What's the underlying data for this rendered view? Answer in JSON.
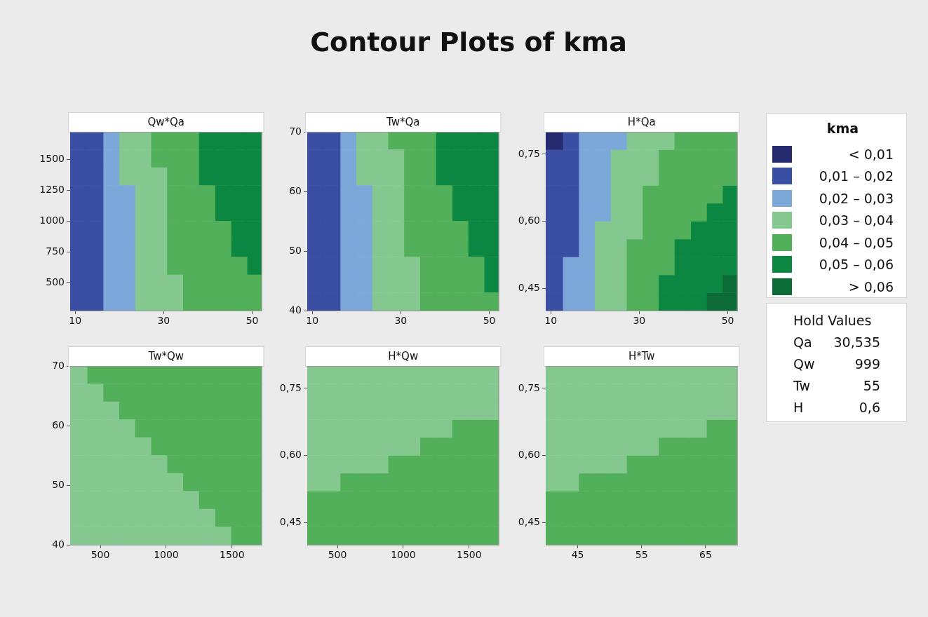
{
  "chart_data": [
    {
      "type": "other",
      "title": "Contour Plots of kma"
    },
    {
      "type": "scatter",
      "title": "Qw*Qa",
      "marker": "square",
      "xlim": [
        8.87,
        52.2
      ],
      "xticks": [
        10,
        30,
        50
      ],
      "ylim": [
        271,
        1727
      ],
      "yticks": [
        500,
        750,
        1000,
        1250,
        1500
      ],
      "series": [
        {
          "color": "#3a4fa3",
          "x": [
            10.7,
            14.3,
            10.7,
            14.3,
            10.7,
            14.3,
            10.7,
            14.3,
            10.7,
            14.3,
            10.7,
            14.3,
            10.7,
            14.3,
            10.7,
            14.3,
            10.7,
            14.3,
            10.7,
            14.3
          ],
          "values": [
            1654,
            1654,
            1508,
            1508,
            1363,
            1363,
            1217,
            1217,
            1072,
            1072,
            926,
            926,
            780,
            780,
            635,
            635,
            489,
            489,
            344,
            344
          ]
        },
        {
          "color": "#7ba7d9",
          "x": [
            17.9,
            17.9,
            17.9,
            17.9,
            21.5,
            17.9,
            21.5,
            17.9,
            21.5,
            17.9,
            21.5,
            17.9,
            21.5,
            17.9,
            21.5,
            17.9,
            21.5
          ],
          "values": [
            1654,
            1508,
            1363,
            1217,
            1217,
            1072,
            1072,
            926,
            926,
            780,
            780,
            635,
            635,
            489,
            489,
            344,
            344
          ]
        },
        {
          "color": "#84c890",
          "x": [
            21.5,
            25.1,
            21.5,
            25.1,
            21.5,
            25.1,
            28.7,
            25.1,
            28.7,
            25.1,
            28.7,
            25.1,
            28.7,
            25.1,
            28.7,
            25.1,
            28.7,
            25.1,
            28.7,
            32.3,
            25.1,
            28.7,
            32.3
          ],
          "values": [
            1654,
            1654,
            1508,
            1508,
            1363,
            1363,
            1363,
            1217,
            1217,
            1072,
            1072,
            926,
            926,
            780,
            780,
            635,
            635,
            489,
            489,
            489,
            344,
            344,
            344
          ]
        },
        {
          "color": "#52b05a",
          "x": [
            28.7,
            32.3,
            35.9,
            28.7,
            32.3,
            35.9,
            32.3,
            35.9,
            32.3,
            35.9,
            39.6,
            32.3,
            35.9,
            39.6,
            32.3,
            35.9,
            39.6,
            43.2,
            32.3,
            35.9,
            39.6,
            43.2,
            32.3,
            35.9,
            39.6,
            43.2,
            46.8,
            35.9,
            39.6,
            43.2,
            46.8,
            50.4,
            35.9,
            39.6,
            43.2,
            46.8,
            50.4
          ],
          "values": [
            1654,
            1654,
            1654,
            1508,
            1508,
            1508,
            1363,
            1363,
            1217,
            1217,
            1217,
            1072,
            1072,
            1072,
            926,
            926,
            926,
            926,
            780,
            780,
            780,
            780,
            635,
            635,
            635,
            635,
            635,
            489,
            489,
            489,
            489,
            489,
            344,
            344,
            344,
            344,
            344
          ]
        },
        {
          "color": "#0c8742",
          "x": [
            39.6,
            43.2,
            46.8,
            50.4,
            39.6,
            43.2,
            46.8,
            50.4,
            39.6,
            43.2,
            46.8,
            50.4,
            43.2,
            46.8,
            50.4,
            43.2,
            46.8,
            50.4,
            46.8,
            50.4,
            46.8,
            50.4,
            50.4
          ],
          "values": [
            1654,
            1654,
            1654,
            1654,
            1508,
            1508,
            1508,
            1508,
            1363,
            1363,
            1363,
            1363,
            1217,
            1217,
            1217,
            1072,
            1072,
            1072,
            926,
            926,
            780,
            780,
            635
          ]
        }
      ]
    },
    {
      "type": "scatter",
      "title": "Tw*Qa",
      "marker": "square",
      "xlim": [
        8.87,
        52.2
      ],
      "xticks": [
        10,
        30,
        50
      ],
      "ylim": [
        40,
        70
      ],
      "yticks": [
        40,
        50,
        60,
        70
      ],
      "series": [
        {
          "color": "#3a4fa3",
          "x": [
            10.7,
            14.3,
            10.7,
            14.3,
            10.7,
            14.3,
            10.7,
            14.3,
            10.7,
            14.3,
            10.7,
            14.3,
            10.7,
            14.3,
            10.7,
            14.3,
            10.7,
            14.3,
            10.7,
            14.3
          ],
          "values": [
            68.5,
            68.5,
            65.5,
            65.5,
            62.5,
            62.5,
            59.5,
            59.5,
            56.5,
            56.5,
            53.5,
            53.5,
            50.5,
            50.5,
            47.5,
            47.5,
            44.5,
            44.5,
            41.5,
            41.5
          ]
        },
        {
          "color": "#7ba7d9",
          "x": [
            17.9,
            17.9,
            17.9,
            17.9,
            21.5,
            17.9,
            21.5,
            17.9,
            21.5,
            17.9,
            21.5,
            17.9,
            21.5,
            17.9,
            21.5,
            17.9,
            21.5
          ],
          "values": [
            68.5,
            65.5,
            62.5,
            59.5,
            59.5,
            56.5,
            56.5,
            53.5,
            53.5,
            50.5,
            50.5,
            47.5,
            47.5,
            44.5,
            44.5,
            41.5,
            41.5
          ]
        },
        {
          "color": "#84c890",
          "x": [
            21.5,
            25.1,
            21.5,
            25.1,
            28.7,
            21.5,
            25.1,
            28.7,
            25.1,
            28.7,
            25.1,
            28.7,
            25.1,
            28.7,
            25.1,
            28.7,
            25.1,
            28.7,
            32.3,
            25.1,
            28.7,
            32.3,
            25.1,
            28.7,
            32.3
          ],
          "values": [
            68.5,
            68.5,
            65.5,
            65.5,
            65.5,
            62.5,
            62.5,
            62.5,
            59.5,
            59.5,
            56.5,
            56.5,
            53.5,
            53.5,
            50.5,
            50.5,
            47.5,
            47.5,
            47.5,
            44.5,
            44.5,
            44.5,
            41.5,
            41.5,
            41.5
          ]
        },
        {
          "color": "#52b05a",
          "x": [
            28.7,
            32.3,
            35.9,
            32.3,
            35.9,
            32.3,
            35.9,
            32.3,
            35.9,
            39.6,
            32.3,
            35.9,
            39.6,
            32.3,
            35.9,
            39.6,
            43.2,
            32.3,
            35.9,
            39.6,
            43.2,
            35.9,
            39.6,
            43.2,
            46.8,
            35.9,
            39.6,
            43.2,
            46.8,
            35.9,
            39.6,
            43.2,
            46.8,
            50.4
          ],
          "values": [
            68.5,
            68.5,
            68.5,
            65.5,
            65.5,
            62.5,
            62.5,
            59.5,
            59.5,
            59.5,
            56.5,
            56.5,
            56.5,
            53.5,
            53.5,
            53.5,
            53.5,
            50.5,
            50.5,
            50.5,
            50.5,
            47.5,
            47.5,
            47.5,
            47.5,
            44.5,
            44.5,
            44.5,
            44.5,
            41.5,
            41.5,
            41.5,
            41.5,
            41.5
          ]
        },
        {
          "color": "#0c8742",
          "x": [
            39.6,
            43.2,
            46.8,
            50.4,
            39.6,
            43.2,
            46.8,
            50.4,
            39.6,
            43.2,
            46.8,
            50.4,
            43.2,
            46.8,
            50.4,
            43.2,
            46.8,
            50.4,
            46.8,
            50.4,
            46.8,
            50.4,
            50.4,
            50.4
          ],
          "values": [
            68.5,
            68.5,
            68.5,
            68.5,
            65.5,
            65.5,
            65.5,
            65.5,
            62.5,
            62.5,
            62.5,
            62.5,
            59.5,
            59.5,
            59.5,
            56.5,
            56.5,
            56.5,
            53.5,
            53.5,
            50.5,
            50.5,
            47.5,
            44.5
          ]
        }
      ]
    },
    {
      "type": "scatter",
      "title": "H*Qa",
      "marker": "square",
      "legend": "right",
      "legend_title": "kma",
      "xlim": [
        8.87,
        52.2
      ],
      "xticks": [
        10,
        30,
        50
      ],
      "ylim": [
        0.4,
        0.8
      ],
      "yticks": [
        {
          "value": 0.45,
          "label": "0,45"
        },
        {
          "value": 0.6,
          "label": "0,60"
        },
        {
          "value": 0.75,
          "label": "0,75"
        }
      ],
      "series": [
        {
          "name": "< 0,01",
          "color": "#262a6e",
          "x": [
            10.7
          ],
          "values": [
            0.78
          ]
        },
        {
          "name": "0,01 – 0,02",
          "color": "#3a4fa3",
          "x": [
            14.3,
            10.7,
            14.3,
            10.7,
            14.3,
            10.7,
            14.3,
            10.7,
            14.3,
            10.7,
            14.3,
            10.7,
            14.3,
            10.7,
            10.7,
            10.7
          ],
          "values": [
            0.78,
            0.74,
            0.74,
            0.7,
            0.7,
            0.66,
            0.66,
            0.62,
            0.62,
            0.58,
            0.58,
            0.54,
            0.54,
            0.5,
            0.46,
            0.42
          ]
        },
        {
          "name": "0,02 – 0,03",
          "color": "#7ba7d9",
          "x": [
            17.9,
            21.5,
            25.1,
            17.9,
            21.5,
            17.9,
            21.5,
            17.9,
            21.5,
            17.9,
            21.5,
            17.9,
            17.9,
            14.3,
            17.9,
            14.3,
            17.9,
            14.3,
            17.9
          ],
          "values": [
            0.78,
            0.78,
            0.78,
            0.74,
            0.74,
            0.7,
            0.7,
            0.66,
            0.66,
            0.62,
            0.62,
            0.58,
            0.54,
            0.5,
            0.5,
            0.46,
            0.46,
            0.42,
            0.42
          ]
        },
        {
          "name": "0,03 – 0,04",
          "color": "#84c890",
          "x": [
            28.7,
            32.3,
            35.9,
            25.1,
            28.7,
            32.3,
            25.1,
            28.7,
            32.3,
            25.1,
            28.7,
            25.1,
            28.7,
            21.5,
            25.1,
            28.7,
            21.5,
            25.1,
            21.5,
            25.1,
            21.5,
            25.1,
            21.5,
            25.1
          ],
          "values": [
            0.78,
            0.78,
            0.78,
            0.74,
            0.74,
            0.74,
            0.7,
            0.7,
            0.7,
            0.66,
            0.66,
            0.62,
            0.62,
            0.58,
            0.58,
            0.58,
            0.54,
            0.54,
            0.5,
            0.5,
            0.46,
            0.46,
            0.42,
            0.42
          ]
        },
        {
          "name": "0,04 – 0,05",
          "color": "#52b05a",
          "x": [
            39.6,
            43.2,
            46.8,
            50.4,
            35.9,
            39.6,
            43.2,
            46.8,
            50.4,
            35.9,
            39.6,
            43.2,
            46.8,
            50.4,
            32.3,
            35.9,
            39.6,
            43.2,
            46.8,
            32.3,
            35.9,
            39.6,
            43.2,
            32.3,
            35.9,
            39.6,
            28.7,
            32.3,
            35.9,
            28.7,
            32.3,
            35.9,
            28.7,
            32.3,
            28.7,
            32.3
          ],
          "values": [
            0.78,
            0.78,
            0.78,
            0.78,
            0.74,
            0.74,
            0.74,
            0.74,
            0.74,
            0.7,
            0.7,
            0.7,
            0.7,
            0.7,
            0.66,
            0.66,
            0.66,
            0.66,
            0.66,
            0.62,
            0.62,
            0.62,
            0.62,
            0.58,
            0.58,
            0.58,
            0.54,
            0.54,
            0.54,
            0.5,
            0.5,
            0.5,
            0.46,
            0.46,
            0.42,
            0.42
          ]
        },
        {
          "name": "0,05 – 0,06",
          "color": "#0c8742",
          "x": [
            50.4,
            46.8,
            50.4,
            43.2,
            46.8,
            50.4,
            39.6,
            43.2,
            46.8,
            50.4,
            39.6,
            43.2,
            46.8,
            50.4,
            35.9,
            39.6,
            43.2,
            46.8,
            35.9,
            39.6,
            43.2
          ],
          "values": [
            0.66,
            0.62,
            0.62,
            0.58,
            0.58,
            0.58,
            0.54,
            0.54,
            0.54,
            0.54,
            0.5,
            0.5,
            0.5,
            0.5,
            0.46,
            0.46,
            0.46,
            0.46,
            0.42,
            0.42,
            0.42
          ]
        },
        {
          "name": "> 0,06",
          "color": "#0c6b37",
          "x": [
            50.4,
            46.8,
            50.4
          ],
          "values": [
            0.46,
            0.42,
            0.42
          ]
        }
      ]
    },
    {
      "type": "scatter",
      "title": "Tw*Qw",
      "marker": "square",
      "xlim": [
        271,
        1727
      ],
      "xticks": [
        500,
        1000,
        1500
      ],
      "ylim": [
        40,
        70
      ],
      "yticks": [
        40,
        50,
        60,
        70
      ],
      "series": [
        {
          "color": "#84c890",
          "x": [
            332,
            332,
            453,
            332,
            453,
            574,
            332,
            453,
            574,
            695,
            332,
            453,
            574,
            695,
            817,
            332,
            453,
            574,
            695,
            817,
            938,
            332,
            453,
            574,
            695,
            817,
            938,
            1059,
            332,
            453,
            574,
            695,
            817,
            938,
            1059,
            1180,
            332,
            453,
            574,
            695,
            817,
            938,
            1059,
            1180,
            1302,
            332,
            453,
            574,
            695,
            817,
            938,
            1059,
            1180,
            1302,
            1423
          ],
          "values": [
            68.5,
            65.5,
            65.5,
            62.5,
            62.5,
            62.5,
            59.5,
            59.5,
            59.5,
            59.5,
            56.5,
            56.5,
            56.5,
            56.5,
            56.5,
            53.5,
            53.5,
            53.5,
            53.5,
            53.5,
            53.5,
            50.5,
            50.5,
            50.5,
            50.5,
            50.5,
            50.5,
            50.5,
            47.5,
            47.5,
            47.5,
            47.5,
            47.5,
            47.5,
            47.5,
            47.5,
            44.5,
            44.5,
            44.5,
            44.5,
            44.5,
            44.5,
            44.5,
            44.5,
            44.5,
            41.5,
            41.5,
            41.5,
            41.5,
            41.5,
            41.5,
            41.5,
            41.5,
            41.5,
            41.5
          ]
        },
        {
          "color": "#52b05a",
          "x": [
            453,
            574,
            695,
            817,
            938,
            1059,
            1180,
            1302,
            1423,
            1544,
            1665,
            574,
            695,
            817,
            938,
            1059,
            1180,
            1302,
            1423,
            1544,
            1665,
            695,
            817,
            938,
            1059,
            1180,
            1302,
            1423,
            1544,
            1665,
            817,
            938,
            1059,
            1180,
            1302,
            1423,
            1544,
            1665,
            938,
            1059,
            1180,
            1302,
            1423,
            1544,
            1665,
            1059,
            1180,
            1302,
            1423,
            1544,
            1665,
            1180,
            1302,
            1423,
            1544,
            1665,
            1302,
            1423,
            1544,
            1665,
            1423,
            1544,
            1665,
            1544,
            1665
          ],
          "values": [
            68.5,
            68.5,
            68.5,
            68.5,
            68.5,
            68.5,
            68.5,
            68.5,
            68.5,
            68.5,
            68.5,
            65.5,
            65.5,
            65.5,
            65.5,
            65.5,
            65.5,
            65.5,
            65.5,
            65.5,
            65.5,
            62.5,
            62.5,
            62.5,
            62.5,
            62.5,
            62.5,
            62.5,
            62.5,
            62.5,
            59.5,
            59.5,
            59.5,
            59.5,
            59.5,
            59.5,
            59.5,
            59.5,
            56.5,
            56.5,
            56.5,
            56.5,
            56.5,
            56.5,
            56.5,
            53.5,
            53.5,
            53.5,
            53.5,
            53.5,
            53.5,
            50.5,
            50.5,
            50.5,
            50.5,
            50.5,
            47.5,
            47.5,
            47.5,
            47.5,
            44.5,
            44.5,
            44.5,
            41.5,
            41.5
          ]
        }
      ]
    },
    {
      "type": "scatter",
      "title": "H*Qw",
      "marker": "square",
      "xlim": [
        271,
        1727
      ],
      "xticks": [
        500,
        1000,
        1500
      ],
      "ylim": [
        0.4,
        0.8
      ],
      "yticks": [
        {
          "value": 0.45,
          "label": "0,45"
        },
        {
          "value": 0.6,
          "label": "0,60"
        },
        {
          "value": 0.75,
          "label": "0,75"
        }
      ],
      "series": [
        {
          "color": "#84c890",
          "x": [
            332,
            453,
            574,
            695,
            817,
            938,
            1059,
            1180,
            1302,
            1423,
            1544,
            1665,
            332,
            453,
            574,
            695,
            817,
            938,
            1059,
            1180,
            1302,
            1423,
            1544,
            1665,
            332,
            453,
            574,
            695,
            817,
            938,
            1059,
            1180,
            1302,
            1423,
            1544,
            1665,
            332,
            453,
            574,
            695,
            817,
            938,
            1059,
            1180,
            1302,
            332,
            453,
            574,
            695,
            817,
            938,
            1059,
            332,
            453,
            574,
            695,
            817,
            332,
            453
          ],
          "values": [
            0.78,
            0.78,
            0.78,
            0.78,
            0.78,
            0.78,
            0.78,
            0.78,
            0.78,
            0.78,
            0.78,
            0.78,
            0.74,
            0.74,
            0.74,
            0.74,
            0.74,
            0.74,
            0.74,
            0.74,
            0.74,
            0.74,
            0.74,
            0.74,
            0.7,
            0.7,
            0.7,
            0.7,
            0.7,
            0.7,
            0.7,
            0.7,
            0.7,
            0.7,
            0.7,
            0.7,
            0.66,
            0.66,
            0.66,
            0.66,
            0.66,
            0.66,
            0.66,
            0.66,
            0.66,
            0.62,
            0.62,
            0.62,
            0.62,
            0.62,
            0.62,
            0.62,
            0.58,
            0.58,
            0.58,
            0.58,
            0.58,
            0.54,
            0.54
          ]
        },
        {
          "color": "#52b05a",
          "x": [
            1423,
            1544,
            1665,
            1180,
            1302,
            1423,
            1544,
            1665,
            938,
            1059,
            1180,
            1302,
            1423,
            1544,
            1665,
            574,
            695,
            817,
            938,
            1059,
            1180,
            1302,
            1423,
            1544,
            1665,
            332,
            453,
            574,
            695,
            817,
            938,
            1059,
            1180,
            1302,
            1423,
            1544,
            1665,
            332,
            453,
            574,
            695,
            817,
            938,
            1059,
            1180,
            1302,
            1423,
            1544,
            1665,
            332,
            453,
            574,
            695,
            817,
            938,
            1059,
            1180,
            1302,
            1423,
            1544,
            1665
          ],
          "values": [
            0.66,
            0.66,
            0.66,
            0.62,
            0.62,
            0.62,
            0.62,
            0.62,
            0.58,
            0.58,
            0.58,
            0.58,
            0.58,
            0.58,
            0.58,
            0.54,
            0.54,
            0.54,
            0.54,
            0.54,
            0.54,
            0.54,
            0.54,
            0.54,
            0.54,
            0.5,
            0.5,
            0.5,
            0.5,
            0.5,
            0.5,
            0.5,
            0.5,
            0.5,
            0.5,
            0.5,
            0.5,
            0.46,
            0.46,
            0.46,
            0.46,
            0.46,
            0.46,
            0.46,
            0.46,
            0.46,
            0.46,
            0.46,
            0.46,
            0.42,
            0.42,
            0.42,
            0.42,
            0.42,
            0.42,
            0.42,
            0.42,
            0.42,
            0.42,
            0.42,
            0.42
          ]
        }
      ]
    },
    {
      "type": "scatter",
      "title": "H*Tw",
      "marker": "square",
      "xlim": [
        40,
        70
      ],
      "xticks": [
        45,
        55,
        65
      ],
      "ylim": [
        0.4,
        0.8
      ],
      "yticks": [
        {
          "value": 0.45,
          "label": "0,45"
        },
        {
          "value": 0.6,
          "label": "0,60"
        },
        {
          "value": 0.75,
          "label": "0,75"
        }
      ],
      "series": [
        {
          "color": "#84c890",
          "x": [
            41.25,
            43.75,
            46.25,
            48.75,
            51.25,
            53.75,
            56.25,
            58.75,
            61.25,
            63.75,
            66.25,
            68.75,
            41.25,
            43.75,
            46.25,
            48.75,
            51.25,
            53.75,
            56.25,
            58.75,
            61.25,
            63.75,
            66.25,
            68.75,
            41.25,
            43.75,
            46.25,
            48.75,
            51.25,
            53.75,
            56.25,
            58.75,
            61.25,
            63.75,
            66.25,
            68.75,
            41.25,
            43.75,
            46.25,
            48.75,
            51.25,
            53.75,
            56.25,
            58.75,
            61.25,
            63.75,
            41.25,
            43.75,
            46.25,
            48.75,
            51.25,
            53.75,
            56.25,
            41.25,
            43.75,
            46.25,
            48.75,
            51.25,
            41.25,
            43.75
          ],
          "values": [
            0.78,
            0.78,
            0.78,
            0.78,
            0.78,
            0.78,
            0.78,
            0.78,
            0.78,
            0.78,
            0.78,
            0.78,
            0.74,
            0.74,
            0.74,
            0.74,
            0.74,
            0.74,
            0.74,
            0.74,
            0.74,
            0.74,
            0.74,
            0.74,
            0.7,
            0.7,
            0.7,
            0.7,
            0.7,
            0.7,
            0.7,
            0.7,
            0.7,
            0.7,
            0.7,
            0.7,
            0.66,
            0.66,
            0.66,
            0.66,
            0.66,
            0.66,
            0.66,
            0.66,
            0.66,
            0.66,
            0.62,
            0.62,
            0.62,
            0.62,
            0.62,
            0.62,
            0.62,
            0.58,
            0.58,
            0.58,
            0.58,
            0.58,
            0.54,
            0.54
          ]
        },
        {
          "color": "#52b05a",
          "x": [
            66.25,
            68.75,
            58.75,
            61.25,
            63.75,
            66.25,
            68.75,
            53.75,
            56.25,
            58.75,
            61.25,
            63.75,
            66.25,
            68.75,
            46.25,
            48.75,
            51.25,
            53.75,
            56.25,
            58.75,
            61.25,
            63.75,
            66.25,
            68.75,
            41.25,
            43.75,
            46.25,
            48.75,
            51.25,
            53.75,
            56.25,
            58.75,
            61.25,
            63.75,
            66.25,
            68.75,
            41.25,
            43.75,
            46.25,
            48.75,
            51.25,
            53.75,
            56.25,
            58.75,
            61.25,
            63.75,
            66.25,
            68.75,
            41.25,
            43.75,
            46.25,
            48.75,
            51.25,
            53.75,
            56.25,
            58.75,
            61.25,
            63.75,
            66.25,
            68.75
          ],
          "values": [
            0.66,
            0.66,
            0.62,
            0.62,
            0.62,
            0.62,
            0.62,
            0.58,
            0.58,
            0.58,
            0.58,
            0.58,
            0.58,
            0.58,
            0.54,
            0.54,
            0.54,
            0.54,
            0.54,
            0.54,
            0.54,
            0.54,
            0.54,
            0.54,
            0.5,
            0.5,
            0.5,
            0.5,
            0.5,
            0.5,
            0.5,
            0.5,
            0.5,
            0.5,
            0.5,
            0.5,
            0.46,
            0.46,
            0.46,
            0.46,
            0.46,
            0.46,
            0.46,
            0.46,
            0.46,
            0.46,
            0.46,
            0.46,
            0.42,
            0.42,
            0.42,
            0.42,
            0.42,
            0.42,
            0.42,
            0.42,
            0.42,
            0.42,
            0.42,
            0.42
          ]
        }
      ]
    },
    {
      "type": "other",
      "title": "Hold Values",
      "categories": [
        "Qa",
        "Qw",
        "Tw",
        "H"
      ],
      "value_labels": [
        "30,535",
        "999",
        "55",
        "0,6"
      ]
    }
  ]
}
